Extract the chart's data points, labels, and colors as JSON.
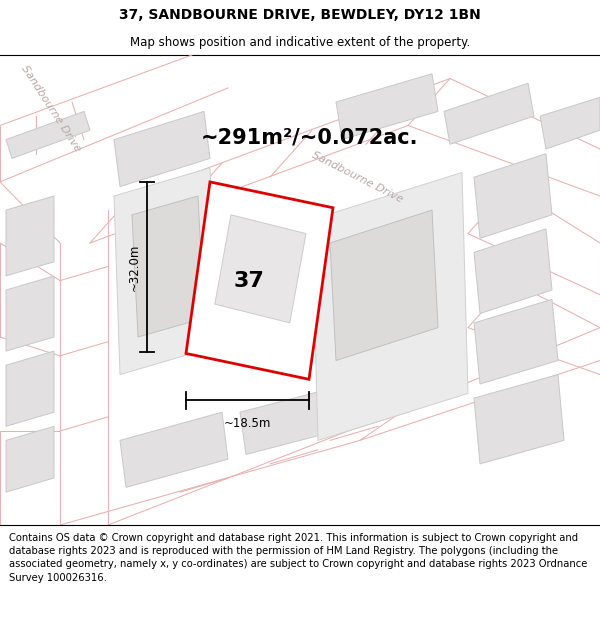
{
  "title": "37, SANDBOURNE DRIVE, BEWDLEY, DY12 1BN",
  "subtitle": "Map shows position and indicative extent of the property.",
  "area_text": "~291m²/~0.072ac.",
  "label_37": "37",
  "dim_height": "~32.0m",
  "dim_width": "~18.5m",
  "road_label_diag": "Sandbourne Drive",
  "road_label_topleft": "Sandbourne Drive",
  "footer": "Contains OS data © Crown copyright and database right 2021. This information is subject to Crown copyright and database rights 2023 and is reproduced with the permission of HM Land Registry. The polygons (including the associated geometry, namely x, y co-ordinates) are subject to Crown copyright and database rights 2023 Ordnance Survey 100026316.",
  "map_bg": "#f7f5f5",
  "building_fill": "#e2e0e0",
  "building_edge": "#c8c8c8",
  "boundary_color": "#e8b0b0",
  "highlight_color": "#dd0000",
  "inner_fill": "#eeecec",
  "inner_edge": "#c0c0c0",
  "road_text_color": "#b8a8a8",
  "white": "#ffffff",
  "title_fontsize": 10,
  "subtitle_fontsize": 8.5,
  "area_fontsize": 15,
  "label_fontsize": 16,
  "dim_fontsize": 8.5,
  "road_label_fontsize": 8,
  "footer_fontsize": 7.2
}
